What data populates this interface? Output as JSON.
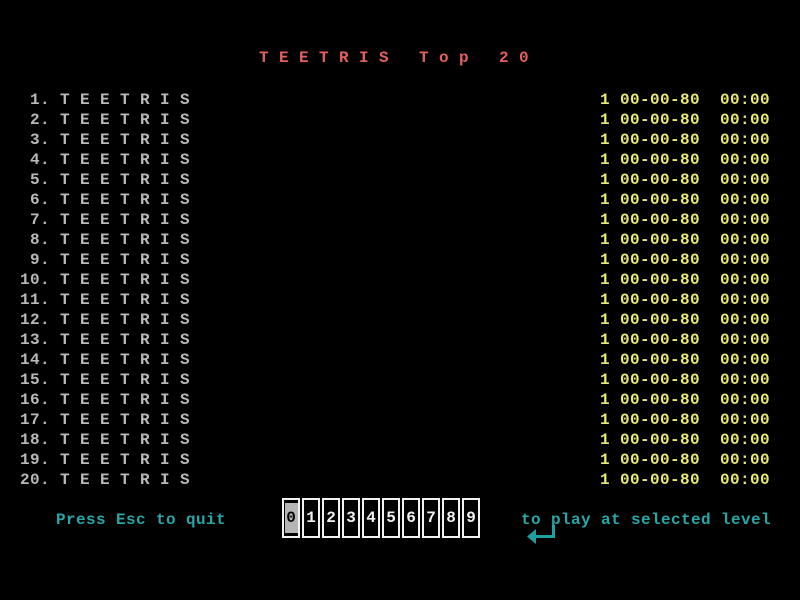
{
  "title": "T E E T R I S   T o p   2 0",
  "scores": {
    "rows": [
      {
        "rank": "1",
        "name": "T E E T R I S",
        "level": "1",
        "date": "00-00-80",
        "time": "00:00"
      },
      {
        "rank": "2",
        "name": "T E E T R I S",
        "level": "1",
        "date": "00-00-80",
        "time": "00:00"
      },
      {
        "rank": "3",
        "name": "T E E T R I S",
        "level": "1",
        "date": "00-00-80",
        "time": "00:00"
      },
      {
        "rank": "4",
        "name": "T E E T R I S",
        "level": "1",
        "date": "00-00-80",
        "time": "00:00"
      },
      {
        "rank": "5",
        "name": "T E E T R I S",
        "level": "1",
        "date": "00-00-80",
        "time": "00:00"
      },
      {
        "rank": "6",
        "name": "T E E T R I S",
        "level": "1",
        "date": "00-00-80",
        "time": "00:00"
      },
      {
        "rank": "7",
        "name": "T E E T R I S",
        "level": "1",
        "date": "00-00-80",
        "time": "00:00"
      },
      {
        "rank": "8",
        "name": "T E E T R I S",
        "level": "1",
        "date": "00-00-80",
        "time": "00:00"
      },
      {
        "rank": "9",
        "name": "T E E T R I S",
        "level": "1",
        "date": "00-00-80",
        "time": "00:00"
      },
      {
        "rank": "10",
        "name": "T E E T R I S",
        "level": "1",
        "date": "00-00-80",
        "time": "00:00"
      },
      {
        "rank": "11",
        "name": "T E E T R I S",
        "level": "1",
        "date": "00-00-80",
        "time": "00:00"
      },
      {
        "rank": "12",
        "name": "T E E T R I S",
        "level": "1",
        "date": "00-00-80",
        "time": "00:00"
      },
      {
        "rank": "13",
        "name": "T E E T R I S",
        "level": "1",
        "date": "00-00-80",
        "time": "00:00"
      },
      {
        "rank": "14",
        "name": "T E E T R I S",
        "level": "1",
        "date": "00-00-80",
        "time": "00:00"
      },
      {
        "rank": "15",
        "name": "T E E T R I S",
        "level": "1",
        "date": "00-00-80",
        "time": "00:00"
      },
      {
        "rank": "16",
        "name": "T E E T R I S",
        "level": "1",
        "date": "00-00-80",
        "time": "00:00"
      },
      {
        "rank": "17",
        "name": "T E E T R I S",
        "level": "1",
        "date": "00-00-80",
        "time": "00:00"
      },
      {
        "rank": "18",
        "name": "T E E T R I S",
        "level": "1",
        "date": "00-00-80",
        "time": "00:00"
      },
      {
        "rank": "19",
        "name": "T E E T R I S",
        "level": "1",
        "date": "00-00-80",
        "time": "00:00"
      },
      {
        "rank": "20",
        "name": "T E E T R I S",
        "level": "1",
        "date": "00-00-80",
        "time": "00:00"
      }
    ]
  },
  "footer": {
    "quit_hint": "Press Esc to quit",
    "play_hint": "to play at selected level",
    "enter_icon": "return-arrow-icon",
    "level_selector": {
      "levels": [
        "0",
        "1",
        "2",
        "3",
        "4",
        "5",
        "6",
        "7",
        "8",
        "9"
      ],
      "selected": "0"
    }
  },
  "colors": {
    "background": "#000000",
    "title_red": "#e45f5f",
    "score_gray": "#b9b9b9",
    "score_yellow": "#eaea75",
    "hint_cyan": "#27a7a7",
    "box_white": "#f2f2f2",
    "selected_bg": "#b5b5b5",
    "selected_fg": "#000000"
  }
}
